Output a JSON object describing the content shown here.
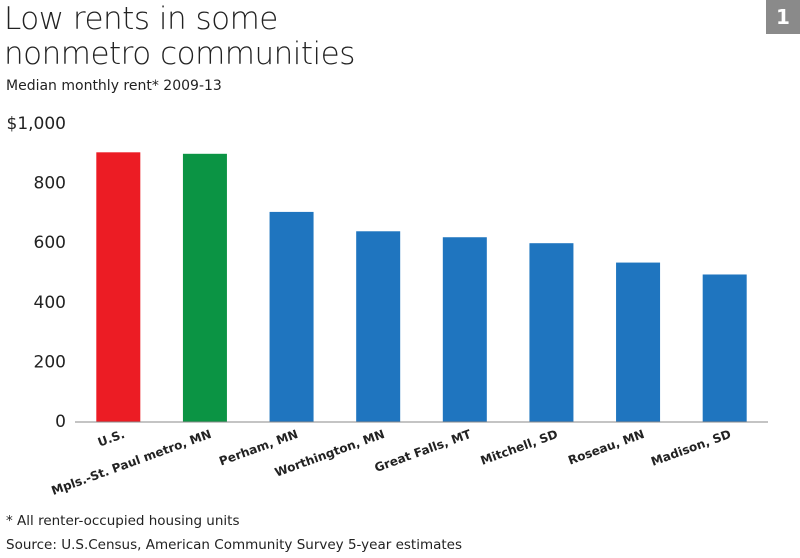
{
  "chart_data": {
    "type": "bar",
    "title": "Low rents in some nonmetro communities",
    "subtitle": "Median monthly rent* 2009-13",
    "badge": "1",
    "footnote": "* All renter-occupied housing units",
    "source": "Source: U.S.Census, American Community Survey 5-year estimates",
    "categories": [
      "U.S.",
      "Mpls.-St. Paul metro, MN",
      "Perham, MN",
      "Worthington, MN",
      "Great Falls, MT",
      "Mitchell, SD",
      "Roseau, MN",
      "Madison, SD"
    ],
    "values": [
      905,
      900,
      705,
      640,
      620,
      600,
      535,
      495
    ],
    "colors": [
      "#ec1c24",
      "#0b9444",
      "#1f75bf",
      "#1f75bf",
      "#1f75bf",
      "#1f75bf",
      "#1f75bf",
      "#1f75bf"
    ],
    "ylim": [
      0,
      1000
    ],
    "yticks": [
      0,
      200,
      400,
      600,
      800,
      {
        "value": 1000,
        "label": "$1,000"
      }
    ],
    "grid": false
  }
}
